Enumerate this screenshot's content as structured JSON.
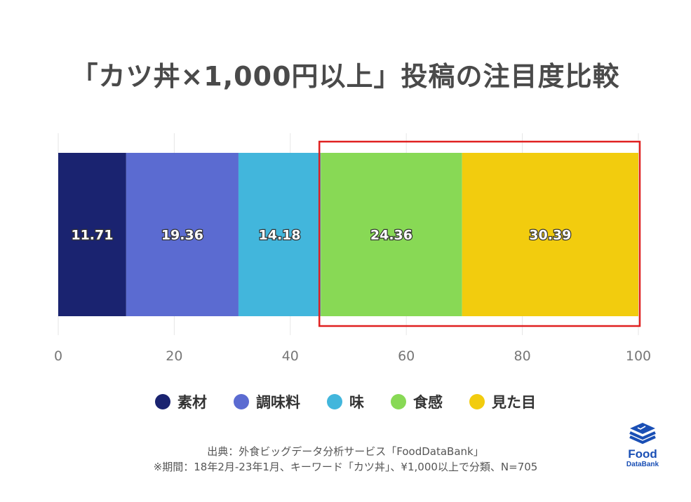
{
  "title": "「カツ丼×1,000円以上」投稿の注目度比較",
  "chart_data": {
    "type": "bar",
    "orientation": "horizontal-stacked",
    "series": [
      {
        "name": "素材",
        "value": 11.71,
        "label": "11.71",
        "color": "#1a2370"
      },
      {
        "name": "調味料",
        "value": 19.36,
        "label": "19.36",
        "color": "#5b6bd1"
      },
      {
        "name": "味",
        "value": 14.18,
        "label": "14.18",
        "color": "#42b6dc"
      },
      {
        "name": "食感",
        "value": 24.36,
        "label": "24.36",
        "color": "#88d955"
      },
      {
        "name": "見た目",
        "value": 30.39,
        "label": "30.39",
        "color": "#f2cc0e"
      }
    ],
    "xlim": [
      0,
      100
    ],
    "xticks": [
      "0",
      "20",
      "40",
      "60",
      "80",
      "100"
    ],
    "grid": true,
    "legend_position": "bottom",
    "highlight": {
      "from_series": "食感",
      "to_series": "見た目",
      "color": "#e02020"
    }
  },
  "source": {
    "line1": "出典：外食ビッグデータ分析サービス「FoodDataBank」",
    "line2": "※期間：18年2月-23年1月、キーワード「カツ丼」、¥1,000以上で分類、N=705"
  },
  "logo": {
    "line1": "Food",
    "line2": "DataBank",
    "icon": "database-stack-icon",
    "color": "#1a4fb5"
  }
}
